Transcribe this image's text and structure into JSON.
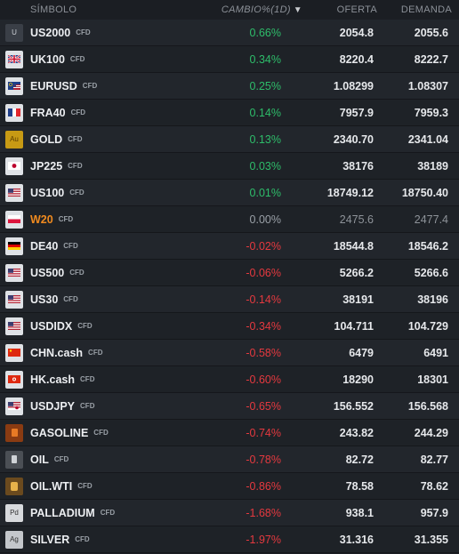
{
  "header": {
    "symbol": "SÍMBOLO",
    "change": "CAMBIO%(1D)",
    "sort_icon": "▼",
    "bid": "OFERTA",
    "ask": "DEMANDA"
  },
  "rows": [
    {
      "name": "US2000",
      "tag": "CFD",
      "change": "0.66%",
      "bid": "2054.8",
      "ask": "2055.6",
      "icon": "u-letter-icon",
      "icon_text": "U",
      "trend": "pos"
    },
    {
      "name": "UK100",
      "tag": "CFD",
      "change": "0.34%",
      "bid": "8220.4",
      "ask": "8222.7",
      "icon": "uk-flag-icon",
      "icon_text": "",
      "trend": "pos"
    },
    {
      "name": "EURUSD",
      "tag": "CFD",
      "change": "0.25%",
      "bid": "1.08299",
      "ask": "1.08307",
      "icon": "eu-us-flag-icon",
      "icon_text": "",
      "trend": "pos"
    },
    {
      "name": "FRA40",
      "tag": "CFD",
      "change": "0.14%",
      "bid": "7957.9",
      "ask": "7959.3",
      "icon": "france-flag-icon",
      "icon_text": "",
      "trend": "pos"
    },
    {
      "name": "GOLD",
      "tag": "CFD",
      "change": "0.13%",
      "bid": "2340.70",
      "ask": "2341.04",
      "icon": "gold-icon",
      "icon_text": "Au",
      "trend": "pos"
    },
    {
      "name": "JP225",
      "tag": "CFD",
      "change": "0.03%",
      "bid": "38176",
      "ask": "38189",
      "icon": "japan-flag-icon",
      "icon_text": "",
      "trend": "pos"
    },
    {
      "name": "US100",
      "tag": "CFD",
      "change": "0.01%",
      "bid": "18749.12",
      "ask": "18750.40",
      "icon": "us-flag-icon",
      "icon_text": "",
      "trend": "pos"
    },
    {
      "name": "W20",
      "tag": "CFD",
      "change": "0.00%",
      "bid": "2475.6",
      "ask": "2477.4",
      "icon": "poland-flag-icon",
      "icon_text": "",
      "trend": "neu"
    },
    {
      "name": "DE40",
      "tag": "CFD",
      "change": "-0.02%",
      "bid": "18544.8",
      "ask": "18546.2",
      "icon": "germany-flag-icon",
      "icon_text": "",
      "trend": "neg"
    },
    {
      "name": "US500",
      "tag": "CFD",
      "change": "-0.06%",
      "bid": "5266.2",
      "ask": "5266.6",
      "icon": "us-flag-icon",
      "icon_text": "",
      "trend": "neg"
    },
    {
      "name": "US30",
      "tag": "CFD",
      "change": "-0.14%",
      "bid": "38191",
      "ask": "38196",
      "icon": "us-flag-icon",
      "icon_text": "",
      "trend": "neg"
    },
    {
      "name": "USDIDX",
      "tag": "CFD",
      "change": "-0.34%",
      "bid": "104.711",
      "ask": "104.729",
      "icon": "us-flag-icon",
      "icon_text": "",
      "trend": "neg"
    },
    {
      "name": "CHN.cash",
      "tag": "CFD",
      "change": "-0.58%",
      "bid": "6479",
      "ask": "6491",
      "icon": "china-flag-icon",
      "icon_text": "",
      "trend": "neg"
    },
    {
      "name": "HK.cash",
      "tag": "CFD",
      "change": "-0.60%",
      "bid": "18290",
      "ask": "18301",
      "icon": "hongkong-flag-icon",
      "icon_text": "",
      "trend": "neg"
    },
    {
      "name": "USDJPY",
      "tag": "CFD",
      "change": "-0.65%",
      "bid": "156.552",
      "ask": "156.568",
      "icon": "us-japan-flag-icon",
      "icon_text": "",
      "trend": "neg"
    },
    {
      "name": "GASOLINE",
      "tag": "CFD",
      "change": "-0.74%",
      "bid": "243.82",
      "ask": "244.29",
      "icon": "gasoline-icon",
      "icon_text": "",
      "trend": "neg"
    },
    {
      "name": "OIL",
      "tag": "CFD",
      "change": "-0.78%",
      "bid": "82.72",
      "ask": "82.77",
      "icon": "oil-barrel-icon",
      "icon_text": "",
      "trend": "neg"
    },
    {
      "name": "OIL.WTI",
      "tag": "CFD",
      "change": "-0.86%",
      "bid": "78.58",
      "ask": "78.62",
      "icon": "oil-wti-icon",
      "icon_text": "",
      "trend": "neg"
    },
    {
      "name": "PALLADIUM",
      "tag": "CFD",
      "change": "-1.68%",
      "bid": "938.1",
      "ask": "957.9",
      "icon": "palladium-icon",
      "icon_text": "Pd",
      "trend": "neg"
    },
    {
      "name": "SILVER",
      "tag": "CFD",
      "change": "-1.97%",
      "bid": "31.316",
      "ask": "31.355",
      "icon": "silver-icon",
      "icon_text": "Ag",
      "trend": "neg"
    }
  ],
  "colors": {
    "positive": "#2ebd6a",
    "negative": "#e5393f",
    "neutral": "#9aa0a7",
    "highlight_symbol": "#ef8a1f"
  }
}
